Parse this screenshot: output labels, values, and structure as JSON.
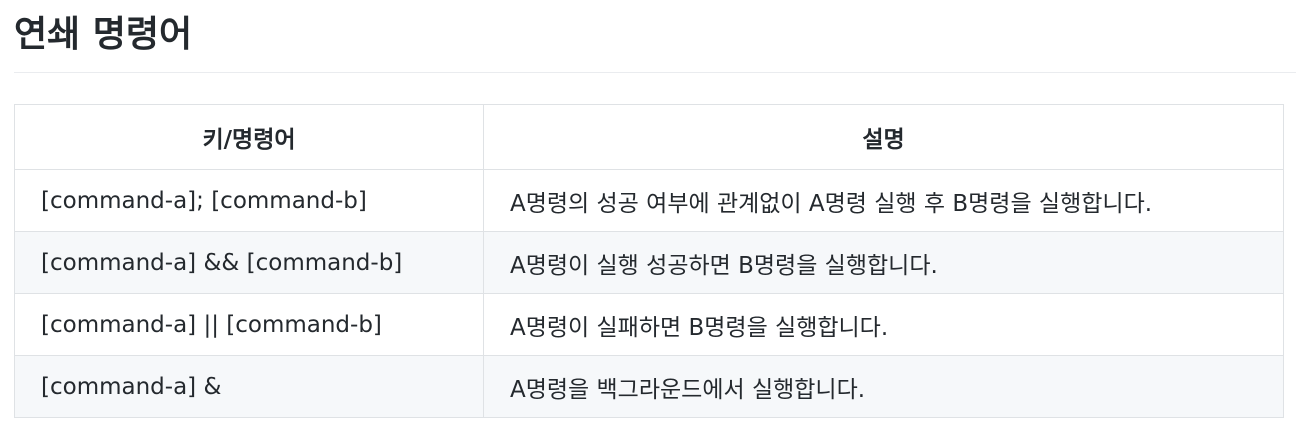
{
  "heading": "연쇄 명령어",
  "table": {
    "headers": [
      "키/명령어",
      "설명"
    ],
    "rows": [
      [
        "[command-a]; [command-b]",
        "A명령의 성공 여부에 관계없이 A명령 실행 후 B명령을 실행합니다."
      ],
      [
        "[command-a] && [command-b]",
        "A명령이 실행 성공하면 B명령을 실행합니다."
      ],
      [
        "[command-a] || [command-b]",
        "A명령이 실패하면 B명령을 실행합니다."
      ],
      [
        "[command-a] &",
        "A명령을 백그라운드에서 실행합니다."
      ]
    ]
  }
}
